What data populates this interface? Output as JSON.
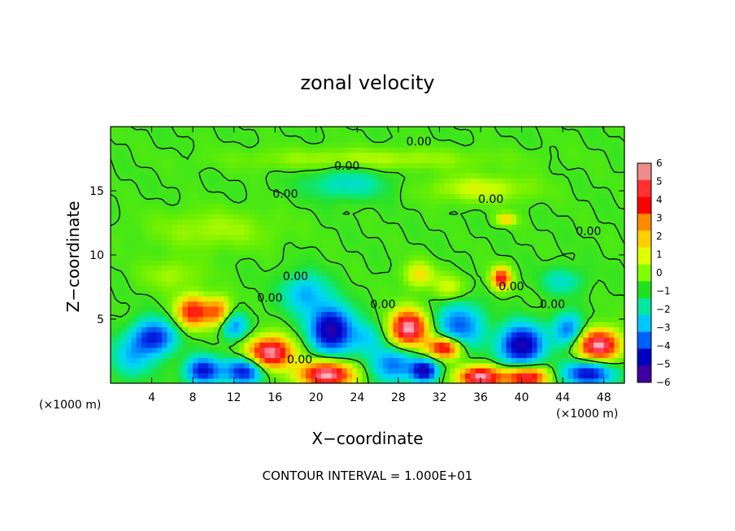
{
  "chart_data": {
    "type": "heatmap",
    "title": "zonal velocity",
    "xlabel": "X−coordinate",
    "ylabel": "Z−coordinate",
    "x_unit_label": "(×1000 m)",
    "z_unit_label": "(×1000 m)",
    "footnote": "CONTOUR INTERVAL = 1.000E+01",
    "xlim": [
      0,
      50
    ],
    "ylim": [
      0,
      20
    ],
    "x_ticks": [
      4,
      8,
      12,
      16,
      20,
      24,
      28,
      32,
      36,
      40,
      44,
      48
    ],
    "y_ticks": [
      5,
      10,
      15
    ],
    "colorbar": {
      "ticks": [
        6,
        5,
        4,
        3,
        2,
        1,
        0,
        -1,
        -2,
        -3,
        -4,
        -5,
        -6
      ],
      "colors": [
        "#f08b8b",
        "#ff3030",
        "#ff0000",
        "#ff8c00",
        "#ffd000",
        "#e0ff00",
        "#80ff00",
        "#20e020",
        "#00e8a0",
        "#00c8ff",
        "#0060ff",
        "#0000c0",
        "#4000a0"
      ]
    },
    "contour_labels": [
      {
        "text": "0.00",
        "x": 23,
        "z": 16.9
      },
      {
        "text": "0.00",
        "x": 17,
        "z": 14.7
      },
      {
        "text": "0.00",
        "x": 30,
        "z": 18.8
      },
      {
        "text": "0.00",
        "x": 37,
        "z": 14.3
      },
      {
        "text": "0.00",
        "x": 46.5,
        "z": 11.8
      },
      {
        "text": "0.00",
        "x": 18,
        "z": 8.3
      },
      {
        "text": "0.00",
        "x": 15.5,
        "z": 6.6
      },
      {
        "text": "0.00",
        "x": 26.5,
        "z": 6.1
      },
      {
        "text": "0.00",
        "x": 39,
        "z": 7.5
      },
      {
        "text": "0.00",
        "x": 43,
        "z": 6.1
      },
      {
        "text": "0.00",
        "x": 18.4,
        "z": 1.8
      }
    ],
    "field_blobs": [
      {
        "x": 4.2,
        "z": 3.6,
        "v": -4.5,
        "rx": 2.0,
        "rz": 1.3
      },
      {
        "x": 8.0,
        "z": 5.6,
        "v": 4.5,
        "rx": 1.6,
        "rz": 1.2
      },
      {
        "x": 10.5,
        "z": 5.6,
        "v": 3.5,
        "rx": 1.2,
        "rz": 1.1
      },
      {
        "x": 12.0,
        "z": 4.5,
        "v": -3.0,
        "rx": 1.3,
        "rz": 1.0
      },
      {
        "x": 9.0,
        "z": 1.0,
        "v": -5.0,
        "rx": 1.6,
        "rz": 1.0
      },
      {
        "x": 15.5,
        "z": 2.4,
        "v": 6.0,
        "rx": 2.2,
        "rz": 1.2
      },
      {
        "x": 13.0,
        "z": 1.0,
        "v": -5.0,
        "rx": 1.8,
        "rz": 1.0
      },
      {
        "x": 21.5,
        "z": 4.2,
        "v": -6.0,
        "rx": 2.0,
        "rz": 1.7
      },
      {
        "x": 19.0,
        "z": 7.0,
        "v": -2.5,
        "rx": 2.2,
        "rz": 1.5
      },
      {
        "x": 21.0,
        "z": 0.7,
        "v": 6.0,
        "rx": 2.6,
        "rz": 1.0
      },
      {
        "x": 29.0,
        "z": 4.3,
        "v": 6.0,
        "rx": 1.8,
        "rz": 1.4
      },
      {
        "x": 27.5,
        "z": 1.5,
        "v": -3.5,
        "rx": 2.0,
        "rz": 1.3
      },
      {
        "x": 34.0,
        "z": 4.5,
        "v": -3.5,
        "rx": 2.2,
        "rz": 1.7
      },
      {
        "x": 32.5,
        "z": 2.8,
        "v": 5.5,
        "rx": 1.6,
        "rz": 0.8
      },
      {
        "x": 30.5,
        "z": 1.0,
        "v": -6.0,
        "rx": 1.2,
        "rz": 0.8
      },
      {
        "x": 36.0,
        "z": 0.5,
        "v": 6.0,
        "rx": 2.2,
        "rz": 0.8
      },
      {
        "x": 40.0,
        "z": 3.0,
        "v": -6.0,
        "rx": 2.0,
        "rz": 1.5
      },
      {
        "x": 38.0,
        "z": 8.2,
        "v": 5.0,
        "rx": 0.9,
        "rz": 0.8
      },
      {
        "x": 40.5,
        "z": 0.5,
        "v": 5.5,
        "rx": 2.0,
        "rz": 0.8
      },
      {
        "x": 44.5,
        "z": 4.2,
        "v": -3.5,
        "rx": 1.4,
        "rz": 1.2
      },
      {
        "x": 47.5,
        "z": 3.0,
        "v": 6.0,
        "rx": 2.0,
        "rz": 1.2
      },
      {
        "x": 46.5,
        "z": 0.8,
        "v": -5.0,
        "rx": 2.4,
        "rz": 0.9
      },
      {
        "x": 2.0,
        "z": 2.0,
        "v": -2.0,
        "rx": 2.0,
        "rz": 1.5
      },
      {
        "x": 25.0,
        "z": 3.5,
        "v": -2.0,
        "rx": 1.5,
        "rz": 1.2
      },
      {
        "x": 23.0,
        "z": 15.6,
        "v": -1.5,
        "rx": 4.0,
        "rz": 1.2
      },
      {
        "x": 36.0,
        "z": 15.2,
        "v": 1.5,
        "rx": 5.0,
        "rz": 1.0
      },
      {
        "x": 38.5,
        "z": 12.8,
        "v": 3.0,
        "rx": 0.9,
        "rz": 0.4
      },
      {
        "x": 30.0,
        "z": 8.5,
        "v": 2.0,
        "rx": 1.5,
        "rz": 1.0
      },
      {
        "x": 33.0,
        "z": 7.5,
        "v": 1.5,
        "rx": 1.5,
        "rz": 1.0
      },
      {
        "x": 44.0,
        "z": 8.0,
        "v": -1.5,
        "rx": 2.0,
        "rz": 1.0
      },
      {
        "x": 6.0,
        "z": 8.5,
        "v": 1.0,
        "rx": 3.0,
        "rz": 1.2
      },
      {
        "x": 25.0,
        "z": 17.5,
        "v": 1.2,
        "rx": 12.0,
        "rz": 0.8
      },
      {
        "x": 10.0,
        "z": 12.0,
        "v": 1.0,
        "rx": 6.0,
        "rz": 1.5
      }
    ]
  }
}
